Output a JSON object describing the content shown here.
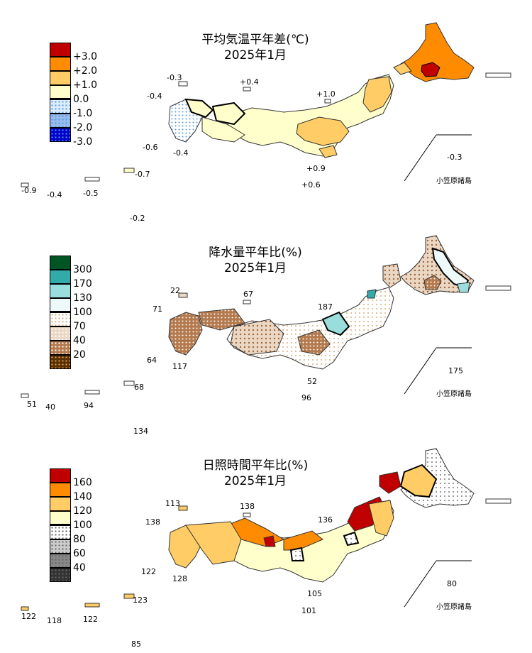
{
  "panels": [
    {
      "id": "temp",
      "title_line1": "平均気温平年差(℃)",
      "title_line2": "2025年1月",
      "legend": [
        {
          "label": "+3.0",
          "color": "#c00000",
          "pattern": "none"
        },
        {
          "label": "+2.0",
          "color": "#ff8c00",
          "pattern": "none"
        },
        {
          "label": "+1.0",
          "color": "#ffcc66",
          "pattern": "none"
        },
        {
          "label": "0.0",
          "color": "#ffffcc",
          "pattern": "none"
        },
        {
          "label": "-1.0",
          "color": "#ddeeff",
          "pattern": "dots"
        },
        {
          "label": "-2.0",
          "color": "#99bbee",
          "pattern": "dots"
        },
        {
          "label": "-3.0",
          "color": "#0000cc",
          "pattern": "dots"
        }
      ],
      "values": [
        "-0.3",
        "+0.4",
        "-0.4",
        "+1.0",
        "-0.6",
        "-0.4",
        "+0.9",
        "+0.6",
        "-0.3",
        "-0.7",
        "-0.9",
        "-0.4",
        "-0.5",
        "-0.2"
      ],
      "ogasawara": "小笠原諸島"
    },
    {
      "id": "precip",
      "title_line1": "降水量平年比(%)",
      "title_line2": "2025年1月",
      "legend": [
        {
          "label": "300",
          "color": "#005522",
          "pattern": "none"
        },
        {
          "label": "170",
          "color": "#33aaaa",
          "pattern": "none"
        },
        {
          "label": "130",
          "color": "#99dddd",
          "pattern": "none"
        },
        {
          "label": "100",
          "color": "#eefafa",
          "pattern": "none"
        },
        {
          "label": "70",
          "color": "#ffffff",
          "pattern": "dots-tan"
        },
        {
          "label": "40",
          "color": "#ead7c4",
          "pattern": "dots-brown"
        },
        {
          "label": "20",
          "color": "#b47a4e",
          "pattern": "dots-brown"
        },
        {
          "label": "",
          "color": "#5a3000",
          "pattern": "dots-dark"
        }
      ],
      "values": [
        "22",
        "67",
        "71",
        "187",
        "64",
        "117",
        "175",
        "52",
        "96",
        "68",
        "51",
        "40",
        "94",
        "134"
      ],
      "ogasawara": "小笠原諸島"
    },
    {
      "id": "sun",
      "title_line1": "日照時間平年比(%)",
      "title_line2": "2025年1月",
      "legend": [
        {
          "label": "160",
          "color": "#c00000",
          "pattern": "none"
        },
        {
          "label": "140",
          "color": "#ff8c00",
          "pattern": "none"
        },
        {
          "label": "120",
          "color": "#ffcc66",
          "pattern": "none"
        },
        {
          "label": "100",
          "color": "#ffffcc",
          "pattern": "none"
        },
        {
          "label": "80",
          "color": "#ffffff",
          "pattern": "dots-gray"
        },
        {
          "label": "60",
          "color": "#cccccc",
          "pattern": "dots-gray"
        },
        {
          "label": "40",
          "color": "#888888",
          "pattern": "dots-gray"
        },
        {
          "label": "",
          "color": "#333333",
          "pattern": "dots-gray"
        }
      ],
      "values": [
        "113",
        "138",
        "138",
        "136",
        "122",
        "128",
        "80",
        "105",
        "101",
        "123",
        "122",
        "118",
        "122",
        "85"
      ],
      "ogasawara": "小笠原諸島"
    }
  ]
}
